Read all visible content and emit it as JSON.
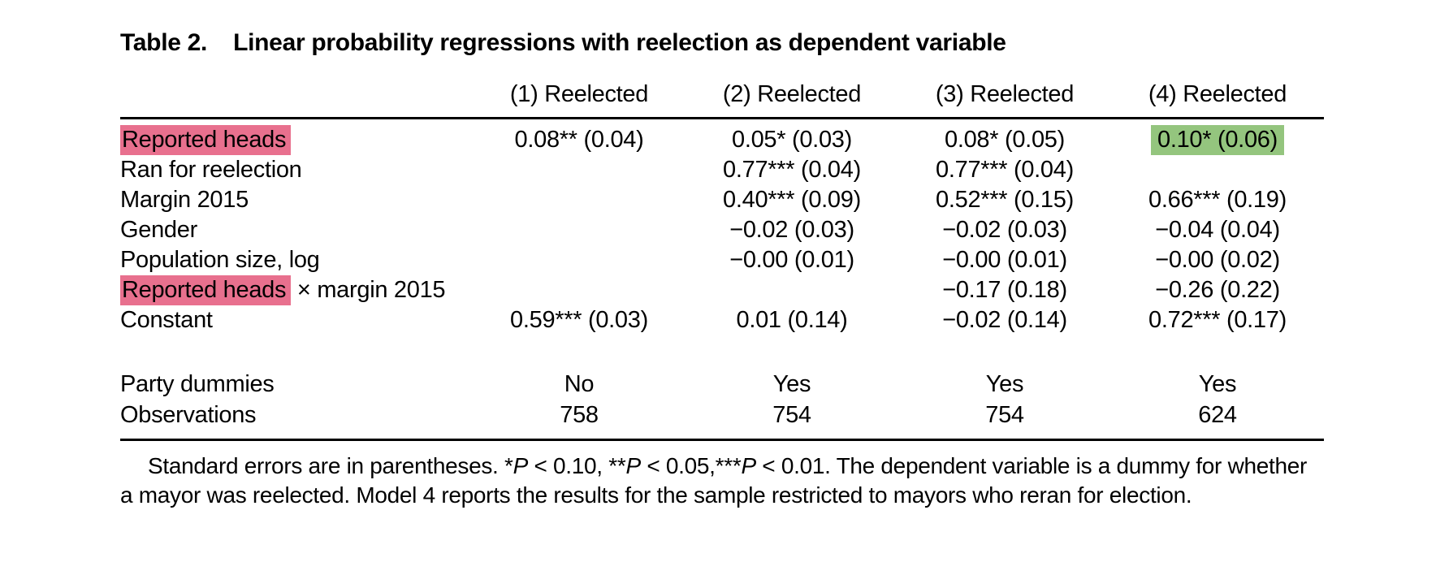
{
  "title": {
    "label": "Table 2.",
    "text": "Linear probability regressions with reelection as dependent variable"
  },
  "colors": {
    "row_label_highlight": "#e8708e",
    "cell_highlight": "#94c57e",
    "rule": "#000000"
  },
  "table": {
    "column_headers": [
      "(1) Reelected",
      "(2) Reelected",
      "(3) Reelected",
      "(4) Reelected"
    ],
    "rows": [
      {
        "label_parts": [
          {
            "text": "Reported heads",
            "highlight": true
          }
        ],
        "cells": [
          {
            "text": "0.08** (0.04)",
            "highlight": false
          },
          {
            "text": "0.05* (0.03)",
            "highlight": false
          },
          {
            "text": "0.08* (0.05)",
            "highlight": false
          },
          {
            "text": "0.10* (0.06)",
            "highlight": true
          }
        ]
      },
      {
        "label_parts": [
          {
            "text": "Ran for reelection",
            "highlight": false
          }
        ],
        "cells": [
          {
            "text": "",
            "highlight": false
          },
          {
            "text": "0.77*** (0.04)",
            "highlight": false
          },
          {
            "text": "0.77*** (0.04)",
            "highlight": false
          },
          {
            "text": "",
            "highlight": false
          }
        ]
      },
      {
        "label_parts": [
          {
            "text": "Margin 2015",
            "highlight": false
          }
        ],
        "cells": [
          {
            "text": "",
            "highlight": false
          },
          {
            "text": "0.40*** (0.09)",
            "highlight": false
          },
          {
            "text": "0.52*** (0.15)",
            "highlight": false
          },
          {
            "text": "0.66*** (0.19)",
            "highlight": false
          }
        ]
      },
      {
        "label_parts": [
          {
            "text": "Gender",
            "highlight": false
          }
        ],
        "cells": [
          {
            "text": "",
            "highlight": false
          },
          {
            "text": "−0.02 (0.03)",
            "highlight": false
          },
          {
            "text": "−0.02 (0.03)",
            "highlight": false
          },
          {
            "text": "−0.04 (0.04)",
            "highlight": false
          }
        ]
      },
      {
        "label_parts": [
          {
            "text": "Population size, log",
            "highlight": false
          }
        ],
        "cells": [
          {
            "text": "",
            "highlight": false
          },
          {
            "text": "−0.00 (0.01)",
            "highlight": false
          },
          {
            "text": "−0.00 (0.01)",
            "highlight": false
          },
          {
            "text": "−0.00 (0.02)",
            "highlight": false
          }
        ]
      },
      {
        "label_parts": [
          {
            "text": "Reported heads",
            "highlight": true
          },
          {
            "text": " × margin 2015",
            "highlight": false
          }
        ],
        "cells": [
          {
            "text": "",
            "highlight": false
          },
          {
            "text": "",
            "highlight": false
          },
          {
            "text": "−0.17 (0.18)",
            "highlight": false
          },
          {
            "text": "−0.26 (0.22)",
            "highlight": false
          }
        ]
      },
      {
        "label_parts": [
          {
            "text": "Constant",
            "highlight": false
          }
        ],
        "cells": [
          {
            "text": "0.59*** (0.03)",
            "highlight": false
          },
          {
            "text": "0.01 (0.14)",
            "highlight": false
          },
          {
            "text": "−0.02 (0.14)",
            "highlight": false
          },
          {
            "text": "0.72*** (0.17)",
            "highlight": false
          }
        ]
      }
    ],
    "summary_rows": [
      {
        "label": "Party dummies",
        "cells": [
          "No",
          "Yes",
          "Yes",
          "Yes"
        ]
      },
      {
        "label": "Observations",
        "cells": [
          "758",
          "754",
          "754",
          "624"
        ]
      }
    ]
  },
  "footnote": {
    "segments": [
      {
        "text": "Standard errors are in parentheses. *",
        "italic": false
      },
      {
        "text": "P",
        "italic": true
      },
      {
        "text": " < 0.10, **",
        "italic": false
      },
      {
        "text": "P",
        "italic": true
      },
      {
        "text": " < 0.05,***",
        "italic": false
      },
      {
        "text": "P",
        "italic": true
      },
      {
        "text": " < 0.01. The dependent variable is a dummy for whether a mayor was reelected. Model 4 reports the results for the sample restricted to mayors who reran for election.",
        "italic": false
      }
    ]
  }
}
